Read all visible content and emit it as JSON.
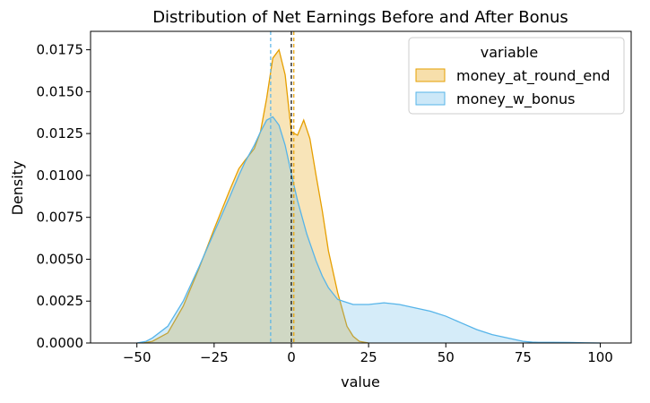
{
  "chart_data": {
    "type": "area",
    "title": "Distribution of Net Earnings Before and After Bonus",
    "xlabel": "value",
    "ylabel": "Density",
    "xlim": [
      -65,
      110
    ],
    "ylim": [
      0,
      0.0186
    ],
    "xticks": [
      -50,
      -25,
      0,
      25,
      50,
      75,
      100
    ],
    "xtick_labels": [
      "−50",
      "−25",
      "0",
      "25",
      "50",
      "75",
      "100"
    ],
    "yticks": [
      0,
      0.0025,
      0.005,
      0.0075,
      0.01,
      0.0125,
      0.015,
      0.0175
    ],
    "ytick_labels": [
      "0.0000",
      "0.0025",
      "0.0050",
      "0.0075",
      "0.0100",
      "0.0125",
      "0.0150",
      "0.0175"
    ],
    "grid": false,
    "legend": {
      "title": "variable",
      "placement": "top-right"
    },
    "series": [
      {
        "name": "money_at_round_end",
        "color": "#E69F00",
        "fill_opacity": 0.28,
        "x": [
          -48,
          -45,
          -40,
          -35,
          -30,
          -25,
          -20,
          -17,
          -15,
          -12,
          -10,
          -8,
          -6,
          -4,
          -2,
          0,
          2,
          4,
          6,
          8,
          10,
          12,
          15,
          18,
          20,
          22,
          25
        ],
        "values": [
          0.0,
          0.0001,
          0.0006,
          0.0022,
          0.0044,
          0.0068,
          0.0091,
          0.0104,
          0.0109,
          0.0116,
          0.0126,
          0.0146,
          0.017,
          0.0175,
          0.016,
          0.0126,
          0.0124,
          0.0133,
          0.0122,
          0.01,
          0.0079,
          0.0055,
          0.003,
          0.001,
          0.0004,
          0.0001,
          0.0
        ]
      },
      {
        "name": "money_w_bonus",
        "color": "#56B4E9",
        "fill_opacity": 0.25,
        "x": [
          -50,
          -47,
          -45,
          -40,
          -35,
          -30,
          -25,
          -20,
          -17,
          -15,
          -12,
          -10,
          -8,
          -6,
          -4,
          -2,
          0,
          2,
          5,
          8,
          10,
          12,
          15,
          20,
          25,
          30,
          35,
          40,
          45,
          50,
          55,
          60,
          65,
          70,
          75,
          78,
          80,
          85,
          90,
          95,
          100
        ],
        "values": [
          0.0,
          0.0001,
          0.0003,
          0.001,
          0.0025,
          0.0045,
          0.0066,
          0.0087,
          0.01,
          0.0108,
          0.0118,
          0.0126,
          0.0133,
          0.0135,
          0.013,
          0.0118,
          0.0101,
          0.0085,
          0.0065,
          0.0049,
          0.004,
          0.0033,
          0.0026,
          0.0023,
          0.0023,
          0.0024,
          0.0023,
          0.0021,
          0.0019,
          0.0016,
          0.0012,
          0.0008,
          0.0005,
          0.0003,
          0.0001,
          5e-05,
          4e-05,
          4e-05,
          3e-05,
          1e-05,
          0.0
        ]
      }
    ],
    "reference_lines": [
      {
        "x": -6.7,
        "color": "#56B4E9",
        "style": "dashed"
      },
      {
        "x": 0.0,
        "color": "#000000",
        "style": "dashed"
      },
      {
        "x": 0.8,
        "color": "#E69F00",
        "style": "dashed"
      }
    ]
  }
}
